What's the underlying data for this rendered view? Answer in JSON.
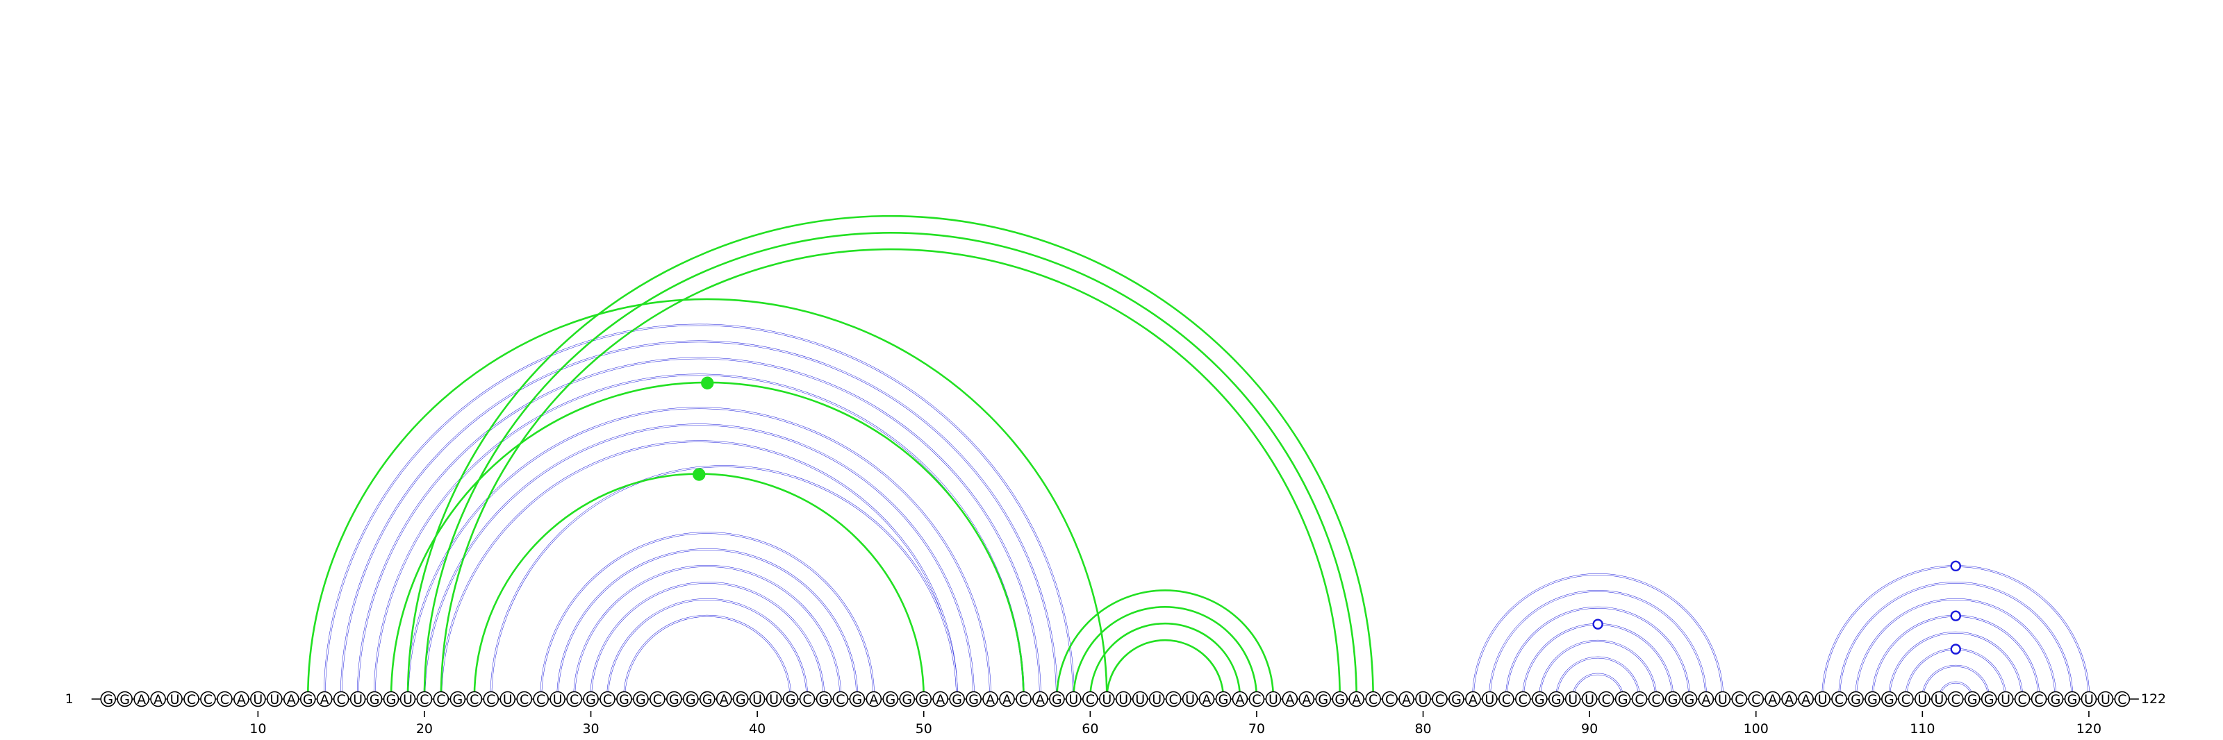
{
  "chart_data": {
    "type": "arc-diagram",
    "sequence": "GGAAUCCCAUUAGACUGGUCCGCCUCCUCGCGGCGGGAGUUGCGCGAGGGAGGAACAGUCUUUUCUAGACUAAGGACCAUCGAUCCGGUUCGCCGGAUCCAAAUCGGGCUUCGGUCCGGUUC",
    "length": 122,
    "start_label": "1",
    "end_label": "122",
    "ticks": [
      10,
      20,
      30,
      40,
      50,
      60,
      70,
      80,
      90,
      100,
      110,
      120
    ],
    "colors": {
      "blue": "#1a1adc",
      "green": "#22e022",
      "ink": "#000000"
    },
    "blue_stems": [
      {
        "i": 14,
        "j": 59,
        "len": 4
      },
      {
        "i": 19,
        "j": 54,
        "len": 3
      },
      {
        "i": 24,
        "j": 52,
        "len": 1
      },
      {
        "i": 27,
        "j": 47,
        "len": 6
      },
      {
        "i": 83,
        "j": 98,
        "len": 7
      },
      {
        "i": 104,
        "j": 120,
        "len": 8
      }
    ],
    "green_arcs": [
      {
        "i": 13,
        "j": 61
      },
      {
        "i": 18,
        "j": 56
      },
      {
        "i": 23,
        "j": 50
      },
      {
        "i": 19,
        "j": 77
      },
      {
        "i": 20,
        "j": 76
      },
      {
        "i": 21,
        "j": 75
      },
      {
        "i": 58,
        "j": 71
      },
      {
        "i": 59,
        "j": 70
      },
      {
        "i": 60,
        "j": 69
      },
      {
        "i": 61,
        "j": 68
      }
    ],
    "markers": [
      {
        "i": 18,
        "j": 56,
        "color": "green",
        "filled": true
      },
      {
        "i": 23,
        "j": 50,
        "color": "green",
        "filled": true
      },
      {
        "i": 86,
        "j": 95,
        "color": "blue",
        "filled": false
      },
      {
        "i": 104,
        "j": 120,
        "color": "blue",
        "filled": false
      },
      {
        "i": 107,
        "j": 117,
        "color": "blue",
        "filled": false
      },
      {
        "i": 109,
        "j": 115,
        "color": "blue",
        "filled": false
      }
    ]
  }
}
